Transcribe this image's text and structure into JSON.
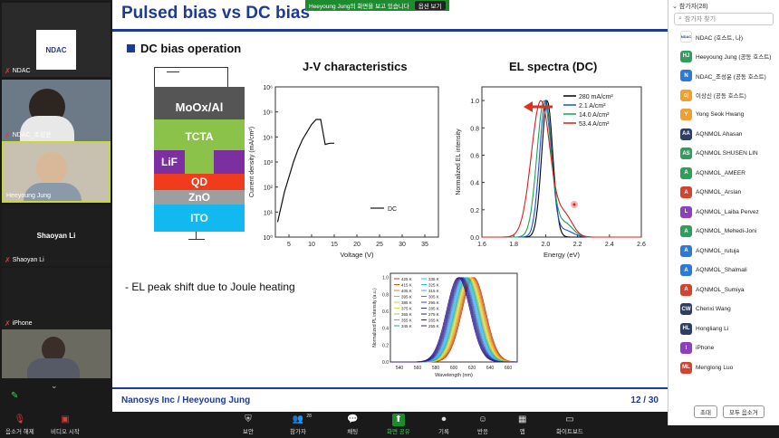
{
  "gallery": {
    "tiles": [
      {
        "name": "NDAC",
        "muted": true,
        "logo_text": "NDAC"
      },
      {
        "name": "NDAC_조성윤",
        "muted": true
      },
      {
        "name": "Heeyoung Jung",
        "muted": false
      },
      {
        "name": "Shaoyan Li",
        "muted": true,
        "center_text": "Shaoyan Li"
      },
      {
        "name": "iPhone",
        "muted": true
      }
    ]
  },
  "share_banner": {
    "text": "Heeyoung Jung의 화면을 보고 있습니다",
    "options": "옵션 보기"
  },
  "slide": {
    "title": "Pulsed bias vs DC bias",
    "subhead": "DC bias operation",
    "jv_title": "J-V characteristics",
    "el_title": "EL spectra (DC)",
    "stack_layers": [
      "MoOx/Al",
      "TCTA",
      "LiF",
      "QD",
      "ZnO",
      "ITO"
    ],
    "bullet": "- EL peak shift due to Joule heating",
    "footer_left": "Nanosys Inc / Heeyoung Jung",
    "footer_right": "12  /  30"
  },
  "chart_data": [
    {
      "type": "line",
      "xlabel": "Voltage (V)",
      "ylabel": "Current density (mA/cm²)",
      "xlim": [
        2,
        38
      ],
      "ylim_log": [
        0,
        6
      ],
      "x_ticks": [
        "5",
        "10",
        "15",
        "20",
        "25",
        "30",
        "35"
      ],
      "y_ticks": [
        "10⁰",
        "10¹",
        "10²",
        "10³",
        "10⁴",
        "10⁵",
        "10⁶"
      ],
      "series": [
        {
          "name": "DC",
          "points": [
            [
              2.5,
              0.6
            ],
            [
              3,
              1.0
            ],
            [
              4,
              1.8
            ],
            [
              5,
              2.4
            ],
            [
              6,
              3.0
            ],
            [
              7,
              3.5
            ],
            [
              8,
              3.9
            ],
            [
              9,
              4.2
            ],
            [
              10,
              4.5
            ],
            [
              11,
              4.7
            ],
            [
              12,
              4.7
            ],
            [
              12.5,
              4.2
            ],
            [
              13,
              3.7
            ],
            [
              14,
              3.75
            ],
            [
              15,
              3.75
            ]
          ]
        }
      ]
    },
    {
      "type": "line",
      "xlabel": "Energy (eV)",
      "ylabel": "Normalized EL intensity",
      "xlim": [
        1.6,
        2.6
      ],
      "ylim": [
        0,
        1.1
      ],
      "x_ticks": [
        "1.6",
        "1.8",
        "2.0",
        "2.2",
        "2.4",
        "2.6"
      ],
      "y_ticks": [
        "0.0",
        "0.2",
        "0.4",
        "0.6",
        "0.8",
        "1.0"
      ],
      "series": [
        {
          "name": "280 mA/cm²",
          "color": "#000000",
          "center": 2.01,
          "width": 0.035,
          "shoulder": 0.0
        },
        {
          "name": "2.1 A/cm²",
          "color": "#1f4fd6",
          "center": 2.0,
          "width": 0.038,
          "shoulder": 0.05
        },
        {
          "name": "14.0 A/cm²",
          "color": "#1aa05a",
          "center": 1.99,
          "width": 0.045,
          "shoulder": 0.1
        },
        {
          "name": "53.4 A/cm²",
          "color": "#d42020",
          "center": 1.97,
          "width": 0.06,
          "shoulder": 0.15
        }
      ]
    },
    {
      "type": "line",
      "xlabel": "Wavelength (nm)",
      "ylabel": "Normalized PL intensity (a.u.)",
      "xlim": [
        530,
        670
      ],
      "ylim": [
        0,
        1.05
      ],
      "x_ticks": [
        "540",
        "560",
        "580",
        "600",
        "620",
        "640",
        "660"
      ],
      "y_ticks": [
        "0.0",
        "0.2",
        "0.4",
        "0.6",
        "0.8",
        "1.0"
      ],
      "series": [
        {
          "name": "425 K",
          "color": "#c0392b",
          "center": 622
        },
        {
          "name": "415 K",
          "color": "#d35400",
          "center": 621
        },
        {
          "name": "405 K",
          "color": "#e67e22",
          "center": 620
        },
        {
          "name": "395 K",
          "color": "#f39c12",
          "center": 619
        },
        {
          "name": "385 K",
          "color": "#f1c40f",
          "center": 618
        },
        {
          "name": "375 K",
          "color": "#d4e157",
          "center": 617
        },
        {
          "name": "365 K",
          "color": "#9ccc65",
          "center": 616
        },
        {
          "name": "355 K",
          "color": "#66bb6a",
          "center": 615
        },
        {
          "name": "345 K",
          "color": "#26a69a",
          "center": 614
        },
        {
          "name": "335 K",
          "color": "#26c6da",
          "center": 613
        },
        {
          "name": "325 K",
          "color": "#29b6f6",
          "center": 612
        },
        {
          "name": "315 K",
          "color": "#42a5f5",
          "center": 611
        },
        {
          "name": "305 K",
          "color": "#5c6bc0",
          "center": 610
        },
        {
          "name": "295 K",
          "color": "#3949ab",
          "center": 609
        },
        {
          "name": "285 K",
          "color": "#283593",
          "center": 608
        },
        {
          "name": "275 K",
          "color": "#1a237e",
          "center": 607
        },
        {
          "name": "265 K",
          "color": "#311b92",
          "center": 606
        },
        {
          "name": "255 K",
          "color": "#4a148c",
          "center": 605
        }
      ]
    }
  ],
  "panel": {
    "header": "참가자(28)",
    "search_placeholder": "참가자 찾기",
    "participants": [
      {
        "initials": "NDAC",
        "name": "NDAC (호스트, 나)",
        "color": "#ffffff"
      },
      {
        "initials": "HJ",
        "name": "Heeyoung Jung (공동 호스트)",
        "color": "#2e9e5b"
      },
      {
        "initials": "N",
        "name": "NDAC_조성윤 (공동 호스트)",
        "color": "#2b7bd6"
      },
      {
        "initials": "이",
        "name": "이상신 (공동 호스트)",
        "color": "#f0a030"
      },
      {
        "initials": "Y",
        "name": "Yong Seok Hwang",
        "color": "#f0a030"
      },
      {
        "initials": "AA",
        "name": "AQNMOL Ahasan",
        "color": "#2e3f66"
      },
      {
        "initials": "AS",
        "name": "AQNMOL SHUSEN LIN",
        "color": "#2e9e5b"
      },
      {
        "initials": "A",
        "name": "AQNMOL_AMEER",
        "color": "#2e9e5b"
      },
      {
        "initials": "A",
        "name": "AQNMOL_Arslan",
        "color": "#d04430"
      },
      {
        "initials": "L",
        "name": "AQNMOL_Laiba Pervez",
        "color": "#8e3fc0"
      },
      {
        "initials": "A",
        "name": "AQNMOL_Mehedi-Joni",
        "color": "#2e9e5b"
      },
      {
        "initials": "A",
        "name": "AQNMOL_rutuja",
        "color": "#2b7bd6"
      },
      {
        "initials": "A",
        "name": "AQNMOL_Shalmali",
        "color": "#2b7bd6"
      },
      {
        "initials": "A",
        "name": "AQNMOL_Sumiya",
        "color": "#d04430"
      },
      {
        "initials": "CW",
        "name": "Chenxi Wang",
        "color": "#2e3f66"
      },
      {
        "initials": "HL",
        "name": "Hongliang Li",
        "color": "#2e3f66"
      },
      {
        "initials": "I",
        "name": "iPhone",
        "color": "#8e3fc0"
      },
      {
        "initials": "ML",
        "name": "Menglong Luo",
        "color": "#d04430"
      }
    ],
    "invite_button": "초대",
    "mute_all_button": "모두 음소거"
  },
  "toolbar": {
    "items": [
      {
        "icon": "microphone-muted-icon",
        "label": "음소거 해제"
      },
      {
        "icon": "video-off-icon",
        "label": "비디오 시작"
      },
      {
        "icon": "shield-icon",
        "label": "보안"
      },
      {
        "icon": "participants-icon",
        "label": "참가자",
        "count": "28"
      },
      {
        "icon": "chat-icon",
        "label": "채팅"
      },
      {
        "icon": "share-screen-icon",
        "label": "화면 공유"
      },
      {
        "icon": "record-icon",
        "label": "기록"
      },
      {
        "icon": "reactions-icon",
        "label": "반응"
      },
      {
        "icon": "apps-icon",
        "label": "앱"
      },
      {
        "icon": "whiteboard-icon",
        "label": "화이트보드"
      }
    ]
  }
}
